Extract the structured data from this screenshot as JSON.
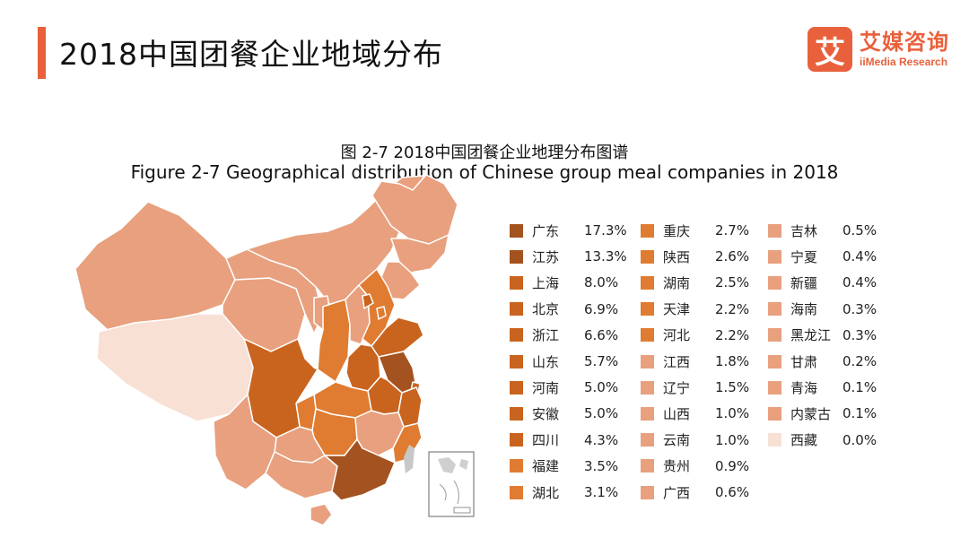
{
  "header": {
    "title": "2018中国团餐企业地域分布",
    "accent_color": "#e8613c"
  },
  "brand": {
    "mark": "艾",
    "name_cn": "艾媒咨询",
    "name_en": "iiMedia Research",
    "color": "#e8613c"
  },
  "figure": {
    "title_cn": "图 2-7 2018中国团餐企业地理分布图谱",
    "title_en": "Figure 2-7 Geographical distribution of Chinese group meal companies in 2018"
  },
  "chart_data": {
    "type": "choropleth-map",
    "unit": "%",
    "regions": [
      {
        "name": "广东",
        "value": "17.3%",
        "color": "#a4521f"
      },
      {
        "name": "江苏",
        "value": "13.3%",
        "color": "#a4521f"
      },
      {
        "name": "上海",
        "value": "8.0%",
        "color": "#c9641f"
      },
      {
        "name": "北京",
        "value": "6.9%",
        "color": "#c9641f"
      },
      {
        "name": "浙江",
        "value": "6.6%",
        "color": "#c9641f"
      },
      {
        "name": "山东",
        "value": "5.7%",
        "color": "#c9641f"
      },
      {
        "name": "河南",
        "value": "5.0%",
        "color": "#c9641f"
      },
      {
        "name": "安徽",
        "value": "5.0%",
        "color": "#c9641f"
      },
      {
        "name": "四川",
        "value": "4.3%",
        "color": "#c9641f"
      },
      {
        "name": "福建",
        "value": "3.5%",
        "color": "#e07c31"
      },
      {
        "name": "湖北",
        "value": "3.1%",
        "color": "#e07c31"
      },
      {
        "name": "重庆",
        "value": "2.7%",
        "color": "#e07c31"
      },
      {
        "name": "陕西",
        "value": "2.6%",
        "color": "#e07c31"
      },
      {
        "name": "湖南",
        "value": "2.5%",
        "color": "#e07c31"
      },
      {
        "name": "天津",
        "value": "2.2%",
        "color": "#e07c31"
      },
      {
        "name": "河北",
        "value": "2.2%",
        "color": "#e07c31"
      },
      {
        "name": "江西",
        "value": "1.8%",
        "color": "#e8a07e"
      },
      {
        "name": "辽宁",
        "value": "1.5%",
        "color": "#e8a07e"
      },
      {
        "name": "山西",
        "value": "1.0%",
        "color": "#e8a07e"
      },
      {
        "name": "云南",
        "value": "1.0%",
        "color": "#e8a07e"
      },
      {
        "name": "贵州",
        "value": "0.9%",
        "color": "#e8a07e"
      },
      {
        "name": "广西",
        "value": "0.6%",
        "color": "#e8a07e"
      },
      {
        "name": "吉林",
        "value": "0.5%",
        "color": "#e8a07e"
      },
      {
        "name": "宁夏",
        "value": "0.4%",
        "color": "#e8a07e"
      },
      {
        "name": "新疆",
        "value": "0.4%",
        "color": "#e8a07e"
      },
      {
        "name": "海南",
        "value": "0.3%",
        "color": "#e8a07e"
      },
      {
        "name": "黑龙江",
        "value": "0.3%",
        "color": "#e8a07e"
      },
      {
        "name": "甘肃",
        "value": "0.2%",
        "color": "#e8a07e"
      },
      {
        "name": "青海",
        "value": "0.1%",
        "color": "#e8a07e"
      },
      {
        "name": "内蒙古",
        "value": "0.1%",
        "color": "#e8a07e"
      },
      {
        "name": "西藏",
        "value": "0.0%",
        "color": "#f8e0d5"
      }
    ]
  }
}
